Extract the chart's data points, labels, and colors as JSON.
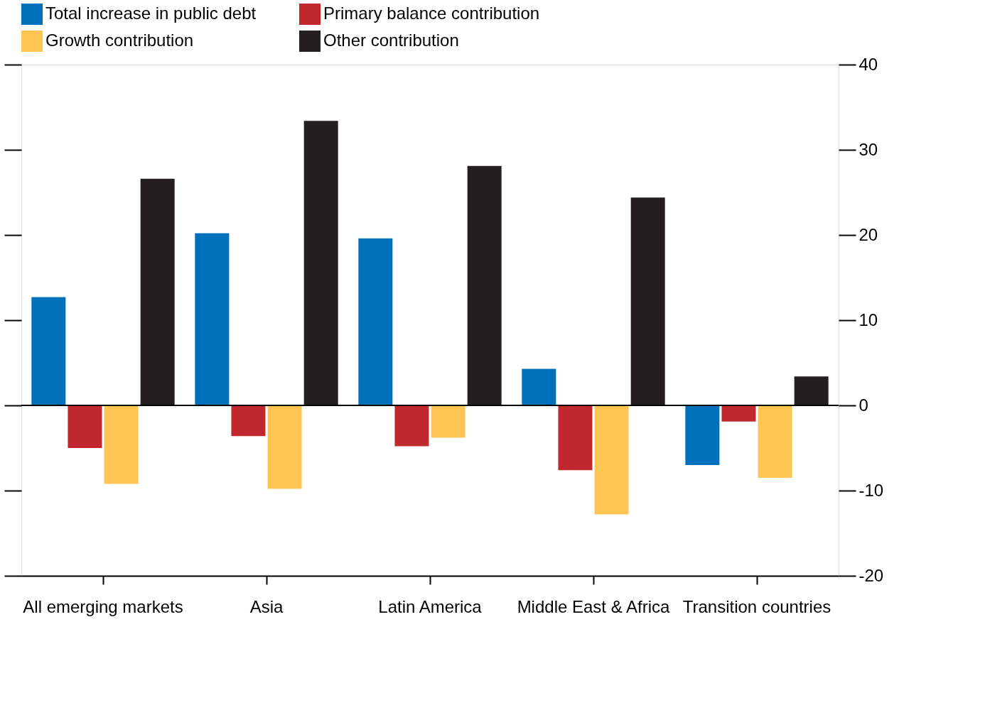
{
  "chart_data": {
    "type": "bar",
    "categories": [
      "All emerging markets",
      "Asia",
      "Latin America",
      "Middle East & Africa",
      "Transition countries"
    ],
    "series": [
      {
        "name": "Total increase in public debt",
        "color": "#0070bb",
        "values": [
          12.7,
          20.2,
          19.6,
          4.3,
          -7.0
        ]
      },
      {
        "name": "Primary balance contribution",
        "color": "#c0282e",
        "values": [
          -5.0,
          -3.6,
          -4.8,
          -7.6,
          -1.9
        ]
      },
      {
        "name": "Growth contribution",
        "color": "#ffc552",
        "values": [
          -9.2,
          -9.8,
          -3.8,
          -12.8,
          -8.5
        ]
      },
      {
        "name": "Other contribution",
        "color": "#231f20",
        "values": [
          26.6,
          33.4,
          28.1,
          24.4,
          3.4
        ]
      }
    ],
    "ylim": [
      -20,
      40
    ],
    "yticks": [
      -20,
      -10,
      0,
      10,
      20,
      30,
      40
    ],
    "ref_lines": [
      {
        "axis": "y",
        "value": 0
      }
    ],
    "grid": false,
    "legend": "top"
  }
}
